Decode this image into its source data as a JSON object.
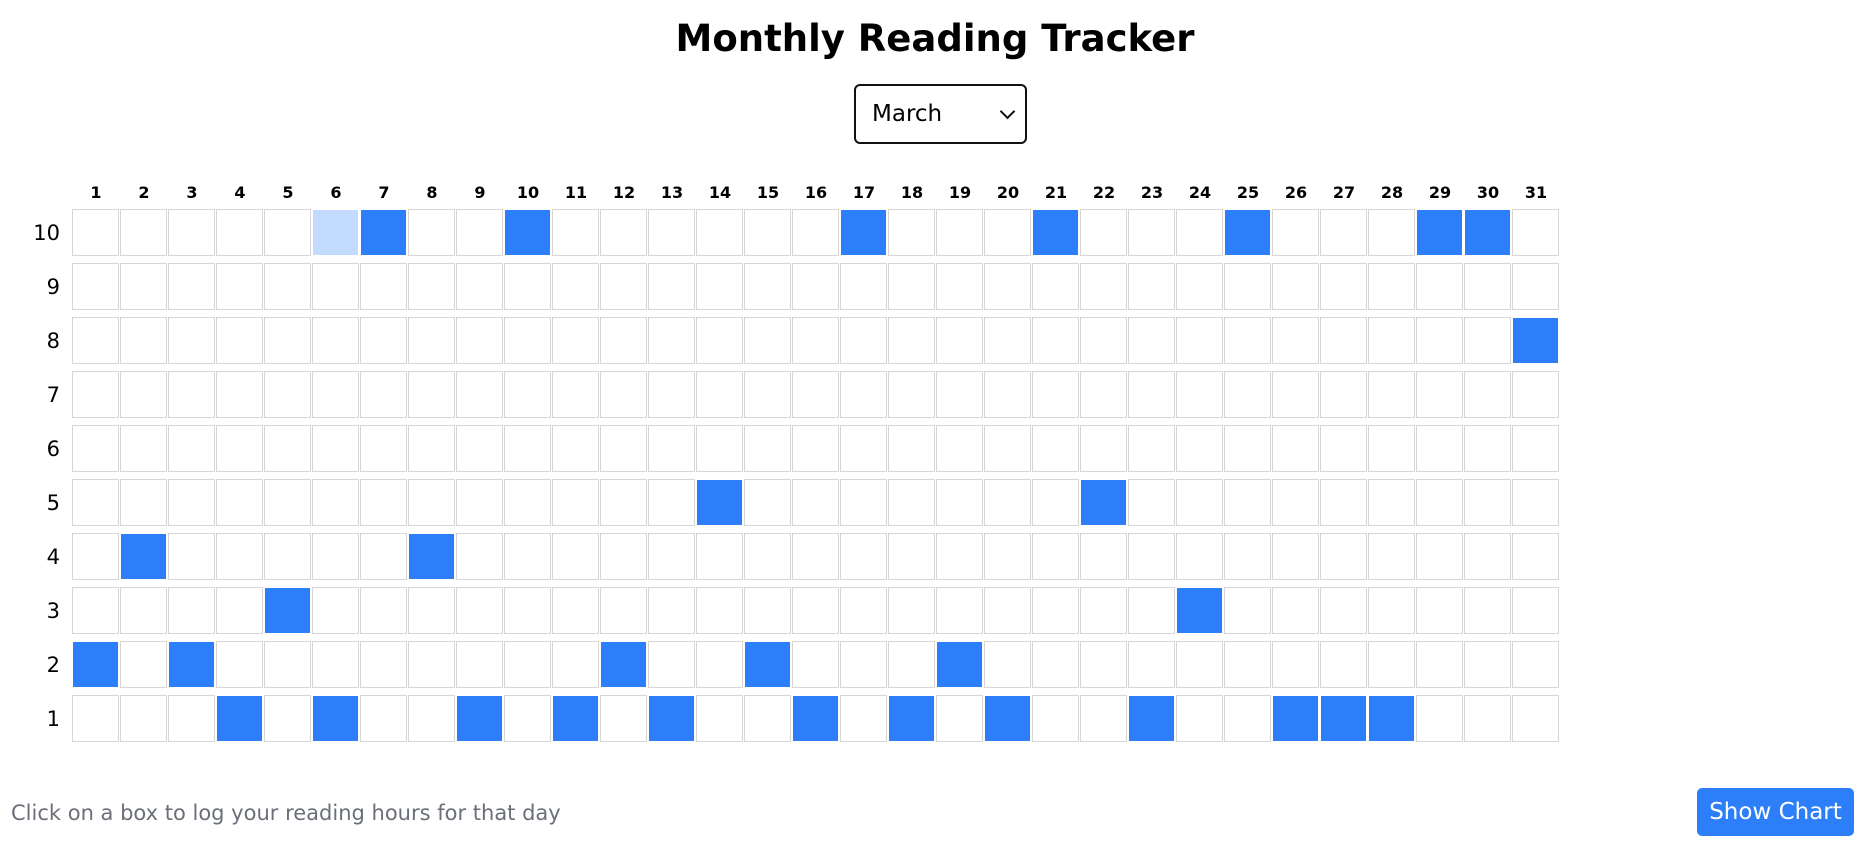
{
  "title": "Monthly Reading Tracker",
  "month_select": {
    "selected": "March"
  },
  "tracker": {
    "days": [
      1,
      2,
      3,
      4,
      5,
      6,
      7,
      8,
      9,
      10,
      11,
      12,
      13,
      14,
      15,
      16,
      17,
      18,
      19,
      20,
      21,
      22,
      23,
      24,
      25,
      26,
      27,
      28,
      29,
      30,
      31
    ],
    "hour_rows": [
      10,
      9,
      8,
      7,
      6,
      5,
      4,
      3,
      2,
      1
    ],
    "logged_hours": [
      2,
      4,
      2,
      1,
      3,
      1,
      10,
      4,
      1,
      10,
      1,
      2,
      1,
      5,
      2,
      1,
      10,
      1,
      2,
      1,
      10,
      5,
      1,
      3,
      10,
      1,
      1,
      1,
      10,
      10,
      8
    ],
    "hovered_cell": {
      "day": 6,
      "hours": 10
    },
    "colors": {
      "filled": "#2d7ff9",
      "hover": "#c2dbff",
      "empty": "#ffffff",
      "border": "#d6d6d6"
    }
  },
  "hint": "Click on a box to log your reading hours for that day",
  "show_chart_label": "Show Chart"
}
